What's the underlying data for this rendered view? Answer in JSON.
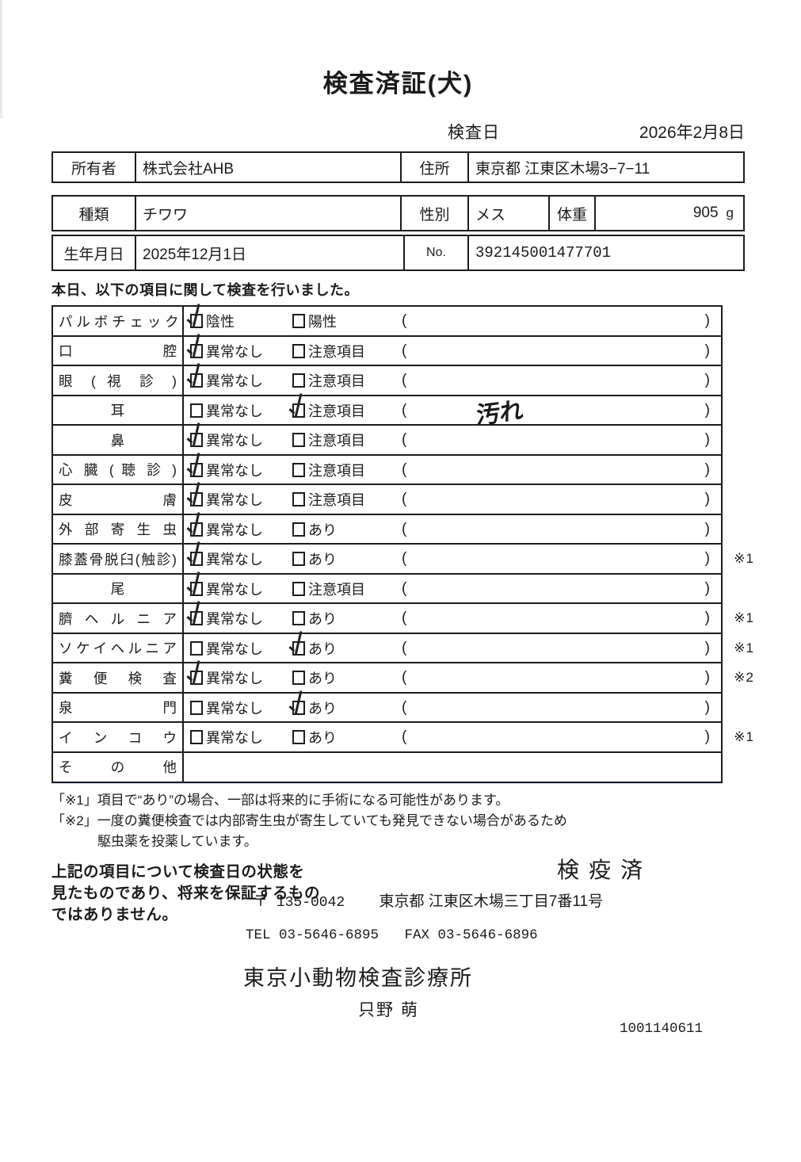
{
  "colors": {
    "ink": "#1b1b1b",
    "scan_line_blue": "#6e96cd"
  },
  "header": {
    "title": "検査済証(犬)",
    "inspection_date_label": "検査日",
    "inspection_date": "2026年2月8日"
  },
  "info": {
    "owner_label": "所有者",
    "owner": "株式会社AHB",
    "address_label": "住所",
    "address": "東京都 江東区木場3−7−11",
    "species_label": "種類",
    "species": "チワワ",
    "sex_label": "性別",
    "sex": "メス",
    "weight_label": "体重",
    "weight": "905",
    "weight_unit": "g",
    "birth_label": "生年月日",
    "birth": "2025年12月1日",
    "no_label": "No.",
    "no": "392145001477701"
  },
  "intro": "本日、以下の項目に関して検査を行いました。",
  "checklist": {
    "paren_open": "(",
    "paren_close": ")",
    "rows": [
      {
        "label": "パ ル ボ チ ェ ッ ク",
        "opt1": "陰性",
        "opt2": "陽性",
        "checked": "opt1",
        "note": "",
        "ref": "",
        "has_parens": true
      },
      {
        "label": "口 腔",
        "opt1": "異常なし",
        "opt2": "注意項目",
        "checked": "opt1",
        "note": "",
        "ref": "",
        "has_parens": true
      },
      {
        "label": "眼 ( 視 診 )",
        "opt1": "異常なし",
        "opt2": "注意項目",
        "checked": "opt1",
        "note": "",
        "ref": "",
        "has_parens": true
      },
      {
        "label": "耳",
        "opt1": "異常なし",
        "opt2": "注意項目",
        "checked": "opt2",
        "note": "汚れ",
        "ref": "",
        "has_parens": true
      },
      {
        "label": "鼻",
        "opt1": "異常なし",
        "opt2": "注意項目",
        "checked": "opt1",
        "note": "",
        "ref": "",
        "has_parens": true
      },
      {
        "label": "心 臓 ( 聴 診 )",
        "opt1": "異常なし",
        "opt2": "注意項目",
        "checked": "opt1",
        "note": "",
        "ref": "",
        "has_parens": true
      },
      {
        "label": "皮 膚",
        "opt1": "異常なし",
        "opt2": "注意項目",
        "checked": "opt1",
        "note": "",
        "ref": "",
        "has_parens": true
      },
      {
        "label": "外 部 寄 生 虫",
        "opt1": "異常なし",
        "opt2": "あり",
        "checked": "opt1",
        "note": "",
        "ref": "",
        "has_parens": true
      },
      {
        "label": "膝蓋骨脱臼(触診)",
        "opt1": "異常なし",
        "opt2": "あり",
        "checked": "opt1",
        "note": "",
        "ref": "※1",
        "has_parens": true
      },
      {
        "label": "尾",
        "opt1": "異常なし",
        "opt2": "注意項目",
        "checked": "opt1",
        "note": "",
        "ref": "",
        "has_parens": true
      },
      {
        "label": "臍 ヘ ル ニ ア",
        "opt1": "異常なし",
        "opt2": "あり",
        "checked": "opt1",
        "note": "",
        "ref": "※1",
        "has_parens": true
      },
      {
        "label": "ソケイヘルニア",
        "opt1": "異常なし",
        "opt2": "あり",
        "checked": "opt2",
        "note": "",
        "ref": "※1",
        "has_parens": true
      },
      {
        "label": "糞 便 検 査",
        "opt1": "異常なし",
        "opt2": "あり",
        "checked": "opt1",
        "note": "",
        "ref": "※2",
        "has_parens": true
      },
      {
        "label": "泉 門",
        "opt1": "異常なし",
        "opt2": "あり",
        "checked": "opt2",
        "note": "",
        "ref": "",
        "has_parens": true
      },
      {
        "label": "イ ン コ ウ",
        "opt1": "異常なし",
        "opt2": "あり",
        "checked": "",
        "note": "",
        "ref": "※1",
        "has_parens": true
      },
      {
        "label": "そ の 他",
        "opt1": "",
        "opt2": "",
        "checked": "",
        "note": "",
        "ref": "",
        "has_parens": false
      }
    ]
  },
  "footnotes": [
    "「※1」項目で“あり”の場合、一部は将来的に手術になる可能性があります。",
    "「※2」一度の糞便検査では内部寄生虫が寄生していても発見できない場合があるため",
    "駆虫薬を投薬しています。"
  ],
  "disclaimer": [
    "上記の項目について検査日の状態を",
    "見たものであり、将来を保証するもの",
    "ではありません。"
  ],
  "stamp": "検疫済",
  "footer": {
    "postal": "〒 135-0042",
    "address": "東京都 江東区木場三丁目7番11号",
    "tel": "TEL 03-5646-6895",
    "fax": "FAX 03-5646-6896",
    "clinic": "東京小動物検査診療所",
    "veterinarian": "只野 萌",
    "code": "1001140611"
  }
}
